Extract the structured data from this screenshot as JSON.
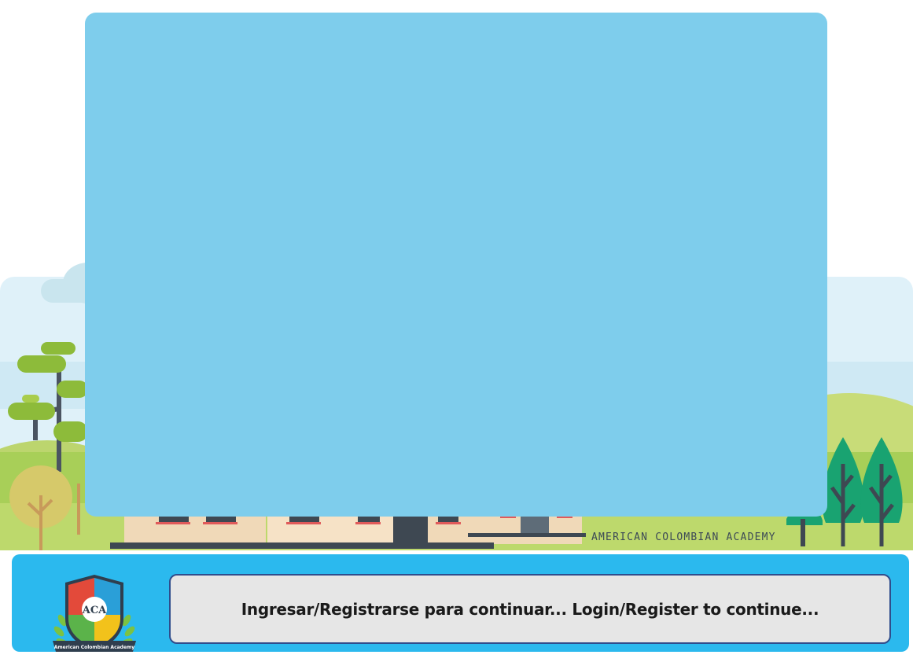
{
  "scene": {
    "street_sign": "AMERICAN COLOMBIAN ACADEMY"
  },
  "crest": {
    "monogram": "ACA",
    "ribbon_text": "American Colombian Academy"
  },
  "login_bar": {
    "message": "Ingresar/Registrarse para continuar... Login/Register to continue..."
  },
  "colors": {
    "panel": "#7ecdec",
    "bar": "#2bb9ee",
    "message_bg": "#e6e6e6",
    "message_border": "#2f4d8c"
  }
}
